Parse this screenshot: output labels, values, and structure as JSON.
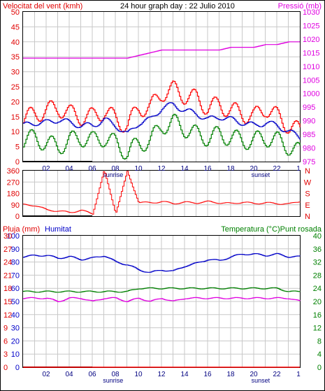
{
  "title": "24 hour graph day : 22 Julio 2010",
  "colors": {
    "wind_gust": "#ff0000",
    "wind_avg": "#0000c8",
    "wind_low": "#008000",
    "pressure": "#e000e0",
    "direction": "#ff0000",
    "humidity": "#0000c8",
    "temperature": "#008000",
    "dewpoint": "#e000e0",
    "rain": "#ff0000",
    "frame": "#000000",
    "grid": "#c8c8c8",
    "night": "#000000"
  },
  "x_ticks": [
    "02",
    "04",
    "06",
    "08",
    "10",
    "12",
    "14",
    "16",
    "18",
    "20",
    "22",
    "1"
  ],
  "sun_labels": {
    "sunrise": "sunrise",
    "sunset": "sunset"
  },
  "chart_data": [
    {
      "type": "line",
      "title": "24 hour graph day : 22 Julio 2010",
      "ylabel": "Velocitat del vent (kmh)",
      "y2label": "Pressió (mb)",
      "ylim": [
        0,
        50
      ],
      "y2lim": [
        975,
        1030
      ],
      "yticks": [
        "0",
        "5",
        "10",
        "15",
        "20",
        "25",
        "30",
        "35",
        "40",
        "45",
        "50"
      ],
      "y2ticks": [
        "975",
        "980",
        "985",
        "990",
        "995",
        "1000",
        "1005",
        "1010",
        "1015",
        "1020",
        "1025",
        "1030"
      ],
      "x": [
        0,
        1,
        2,
        3,
        4,
        5,
        6,
        7,
        8,
        9,
        10,
        11,
        12,
        13,
        14,
        15,
        16,
        17,
        18,
        19,
        20,
        21,
        22,
        23,
        24
      ],
      "series": [
        {
          "name": "Velocitat del vent",
          "axis": "left",
          "values": [
            14,
            16,
            17,
            18,
            16,
            15,
            15,
            17,
            14,
            12,
            18,
            18,
            23,
            24,
            22,
            21,
            18,
            19,
            17,
            16,
            15,
            18,
            15,
            12,
            10
          ]
        },
        {
          "name": "wind average",
          "axis": "left",
          "values": [
            12,
            13,
            13,
            14,
            13,
            12,
            12,
            14,
            12,
            9,
            13,
            14,
            18,
            19,
            17,
            16,
            14,
            15,
            14,
            13,
            12,
            13,
            12,
            10,
            8
          ]
        },
        {
          "name": "wind low",
          "axis": "left",
          "values": [
            7,
            8,
            6,
            5,
            7,
            8,
            7,
            8,
            6,
            3,
            6,
            7,
            12,
            13,
            11,
            9,
            8,
            9,
            8,
            7,
            7,
            8,
            7,
            5,
            3
          ]
        },
        {
          "name": "Pressió",
          "axis": "right",
          "values": [
            1013,
            1013,
            1013,
            1013,
            1013,
            1013,
            1013,
            1013,
            1013,
            1013,
            1014,
            1015,
            1016,
            1016,
            1016,
            1016,
            1016,
            1016,
            1017,
            1017,
            1017,
            1018,
            1018,
            1019,
            1019
          ]
        }
      ]
    },
    {
      "type": "line",
      "ylabel": "",
      "ylim": [
        0,
        360
      ],
      "yticks": [
        "0",
        "90",
        "180",
        "270",
        "360"
      ],
      "y2ticks": [
        "N",
        "E",
        "S",
        "W",
        "N"
      ],
      "x": [
        0,
        1,
        2,
        3,
        4,
        5,
        6,
        7,
        8,
        9,
        10,
        11,
        12,
        13,
        14,
        15,
        16,
        17,
        18,
        19,
        20,
        21,
        22,
        23,
        24
      ],
      "series": [
        {
          "name": "wind direction",
          "values": [
            90,
            85,
            50,
            40,
            30,
            45,
            20,
            360,
            25,
            350,
            110,
            105,
            115,
            100,
            110,
            105,
            115,
            105,
            100,
            110,
            100,
            105,
            100,
            95,
            120
          ]
        }
      ]
    },
    {
      "type": "line",
      "ylabel": "Humitat",
      "y2label": "Temperatura (°C)Punt rosada",
      "ylim": [
        0,
        100
      ],
      "y2lim": [
        0,
        40
      ],
      "yticks": [
        "0",
        "10",
        "20",
        "30",
        "40",
        "50",
        "60",
        "70",
        "80",
        "90",
        "100"
      ],
      "y2ticks": [
        "0",
        "4",
        "8",
        "12",
        "16",
        "20",
        "24",
        "28",
        "32",
        "36",
        "40"
      ],
      "rain_ticks": [
        "0",
        "3",
        "6",
        "9",
        "12",
        "15",
        "18",
        "21",
        "24",
        "27",
        "30"
      ],
      "rain_label": "Pluja (mm)",
      "x": [
        0,
        1,
        2,
        3,
        4,
        5,
        6,
        7,
        8,
        9,
        10,
        11,
        12,
        13,
        14,
        15,
        16,
        17,
        18,
        19,
        20,
        21,
        22,
        23,
        24
      ],
      "series": [
        {
          "name": "Humitat",
          "axis": "left",
          "values": [
            84,
            85,
            85,
            83,
            84,
            82,
            83,
            85,
            80,
            78,
            74,
            72,
            74,
            73,
            77,
            79,
            82,
            81,
            84,
            86,
            86,
            85,
            86,
            84,
            84
          ]
        },
        {
          "name": "Temperatura",
          "axis": "right",
          "values": [
            23,
            23,
            23,
            23,
            23,
            23,
            23,
            23,
            23,
            23,
            24,
            24,
            24,
            24,
            24,
            24,
            24,
            24,
            24,
            24,
            24,
            24,
            24,
            23,
            23
          ]
        },
        {
          "name": "Punt rosada",
          "axis": "right",
          "values": [
            21,
            21,
            21,
            20,
            21,
            21,
            20,
            21,
            21,
            20,
            21,
            20,
            21,
            20,
            21,
            21,
            21,
            21,
            21,
            21,
            21,
            21,
            21,
            21,
            20
          ]
        },
        {
          "name": "Pluja",
          "axis": "rain",
          "values": [
            0,
            0,
            0,
            0,
            0,
            0,
            0,
            0,
            0,
            0,
            0,
            0,
            0,
            0,
            0,
            0,
            0,
            0,
            0,
            0,
            0,
            0,
            0,
            0,
            0
          ]
        }
      ]
    }
  ]
}
